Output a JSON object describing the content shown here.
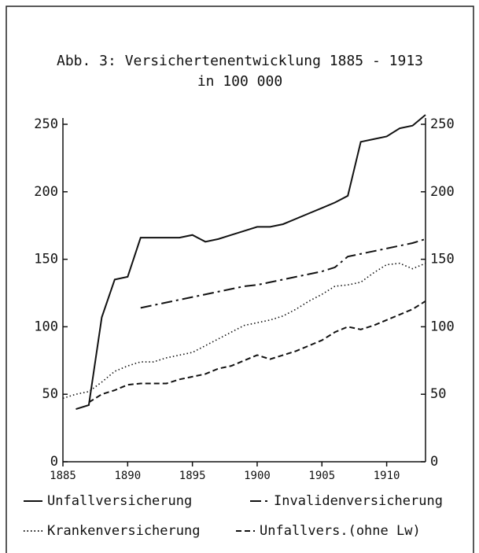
{
  "chart_data": {
    "type": "line",
    "title": "Abb. 3: Versichertenentwicklung 1885 - 1913",
    "subtitle": "in 100 000",
    "x": [
      1885,
      1886,
      1887,
      1888,
      1889,
      1890,
      1891,
      1892,
      1893,
      1894,
      1895,
      1896,
      1897,
      1898,
      1899,
      1900,
      1901,
      1902,
      1903,
      1904,
      1905,
      1906,
      1907,
      1908,
      1909,
      1910,
      1911,
      1912,
      1913
    ],
    "series": [
      {
        "name": "Unfallversicherung",
        "color": "#111111",
        "line_style": "solid",
        "values": [
          null,
          39,
          42,
          107,
          135,
          137,
          166,
          166,
          166,
          166,
          168,
          163,
          165,
          168,
          171,
          174,
          174,
          176,
          180,
          184,
          188,
          192,
          197,
          237,
          239,
          241,
          247,
          249,
          257
        ]
      },
      {
        "name": "Invalidenversicherung",
        "color": "#111111",
        "line_style": "dashdot",
        "values": [
          null,
          null,
          null,
          null,
          null,
          null,
          114,
          116,
          118,
          120,
          122,
          124,
          126,
          128,
          130,
          131,
          133,
          135,
          137,
          139,
          141,
          144,
          152,
          154,
          156,
          158,
          160,
          162,
          165
        ]
      },
      {
        "name": "Krankenversicherung",
        "color": "#111111",
        "line_style": "dotted",
        "values": [
          47,
          50,
          52,
          59,
          67,
          71,
          74,
          74,
          77,
          79,
          81,
          86,
          91,
          96,
          101,
          103,
          105,
          108,
          113,
          119,
          124,
          130,
          131,
          133,
          140,
          146,
          147,
          143,
          147
        ]
      },
      {
        "name": "Unfallvers.(ohne Lw)",
        "color": "#111111",
        "line_style": "dashed",
        "values": [
          null,
          null,
          44,
          50,
          53,
          57,
          58,
          58,
          58,
          61,
          63,
          65,
          69,
          71,
          75,
          79,
          76,
          79,
          82,
          86,
          90,
          96,
          100,
          98,
          101,
          105,
          109,
          113,
          119
        ]
      }
    ],
    "xlim": [
      1885,
      1913
    ],
    "xticks": [
      1885,
      1890,
      1895,
      1900,
      1905,
      1910
    ],
    "ylim": [
      0,
      250
    ],
    "yticks": [
      0,
      50,
      100,
      150,
      200,
      250
    ],
    "y2lim": [
      0,
      250
    ],
    "y2ticks": [
      0,
      50,
      100,
      150,
      200,
      250
    ]
  }
}
